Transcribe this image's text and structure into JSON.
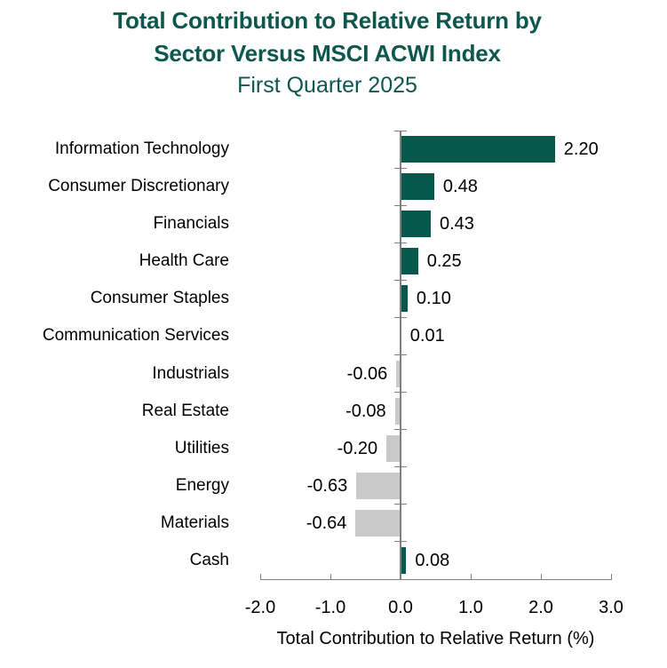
{
  "chart_data": {
    "type": "bar",
    "orientation": "horizontal",
    "title_lines": [
      "Total Contribution to Relative Return by",
      "Sector Versus MSCI ACWI Index"
    ],
    "subtitle": "First Quarter 2025",
    "categories": [
      "Information Technology",
      "Consumer Discretionary",
      "Financials",
      "Health Care",
      "Consumer Staples",
      "Communication Services",
      "Industrials",
      "Real Estate",
      "Utilities",
      "Energy",
      "Materials",
      "Cash"
    ],
    "values": [
      2.2,
      0.48,
      0.43,
      0.25,
      0.1,
      0.01,
      -0.06,
      -0.08,
      -0.2,
      -0.63,
      -0.64,
      0.08
    ],
    "value_labels": [
      "2.20",
      "0.48",
      "0.43",
      "0.25",
      "0.10",
      "0.01",
      "-0.06",
      "-0.08",
      "-0.20",
      "-0.63",
      "-0.64",
      "0.08"
    ],
    "xlabel": "Total Contribution to Relative Return (%)",
    "xlim": [
      -2.0,
      3.0
    ],
    "x_ticks": [
      -2.0,
      -1.0,
      0.0,
      1.0,
      2.0,
      3.0
    ],
    "x_tick_labels": [
      "-2.0",
      "-1.0",
      "0.0",
      "1.0",
      "2.0",
      "3.0"
    ],
    "grid": false,
    "legend": false,
    "colors": {
      "positive_bar": "#05584b",
      "negative_bar": "#c9c9c9",
      "title_text": "#0d574e",
      "axis_line": "#7f7f7f",
      "label_text": "#000000",
      "background": "#ffffff"
    }
  }
}
